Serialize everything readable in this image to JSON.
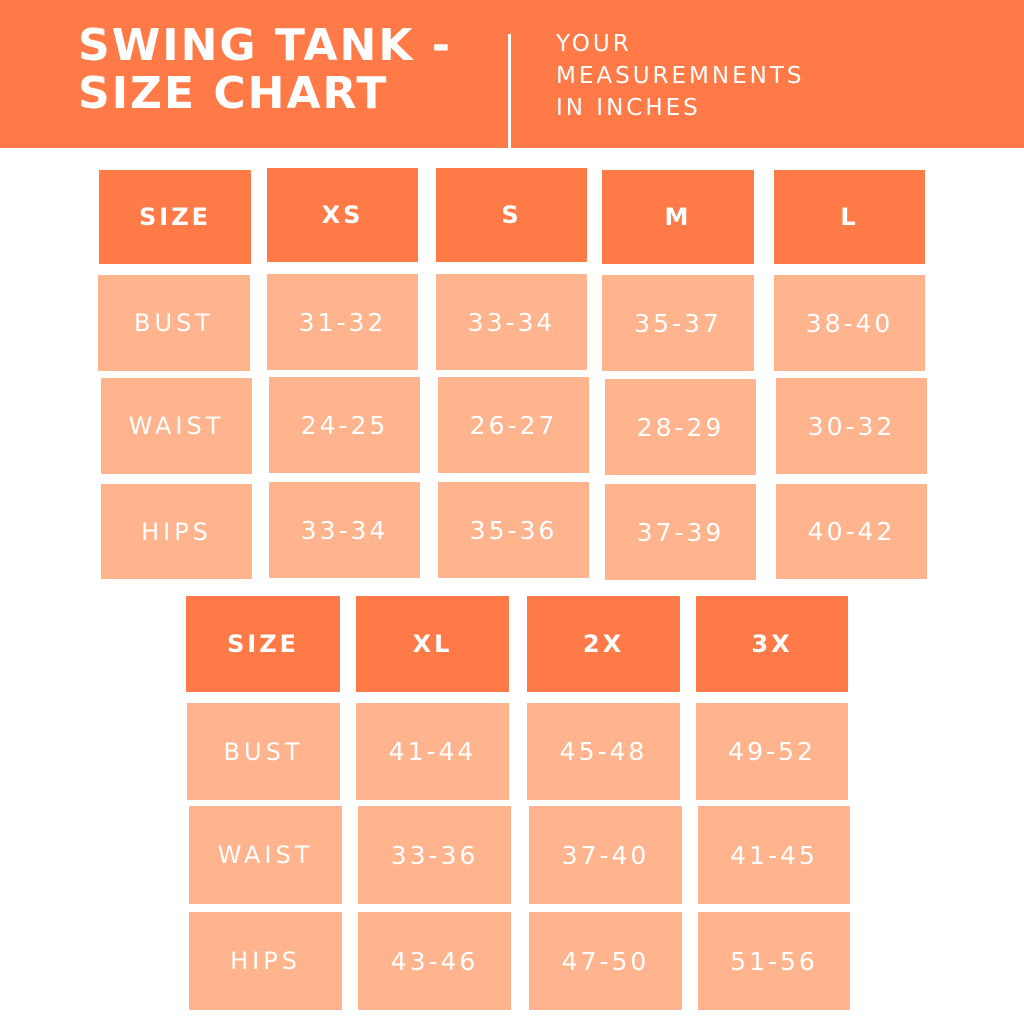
{
  "header": {
    "title_line1": "SWING TANK -",
    "title_line2": "SIZE CHART",
    "subtitle_line1": "YOUR",
    "subtitle_line2": "MEASUREMNENTS",
    "subtitle_line3": "IN INCHES"
  },
  "colors": {
    "header_orange": "#ff7a47",
    "cell_peach": "#ffb48e",
    "text": "#ffffff"
  },
  "table1": {
    "size_label": "SIZE",
    "sizes": [
      "XS",
      "S",
      "M",
      "L"
    ],
    "rows": [
      {
        "label": "BUST",
        "values": [
          "31-32",
          "33-34",
          "35-37",
          "38-40"
        ]
      },
      {
        "label": "WAIST",
        "values": [
          "24-25",
          "26-27",
          "28-29",
          "30-32"
        ]
      },
      {
        "label": "HIPS",
        "values": [
          "33-34",
          "35-36",
          "37-39",
          "40-42"
        ]
      }
    ]
  },
  "table2": {
    "size_label": "SIZE",
    "sizes": [
      "XL",
      "2X",
      "3X"
    ],
    "rows": [
      {
        "label": "BUST",
        "values": [
          "41-44",
          "45-48",
          "49-52"
        ]
      },
      {
        "label": "WAIST",
        "values": [
          "33-36",
          "37-40",
          "41-45"
        ]
      },
      {
        "label": "HIPS",
        "values": [
          "43-46",
          "47-50",
          "51-56"
        ]
      }
    ]
  }
}
